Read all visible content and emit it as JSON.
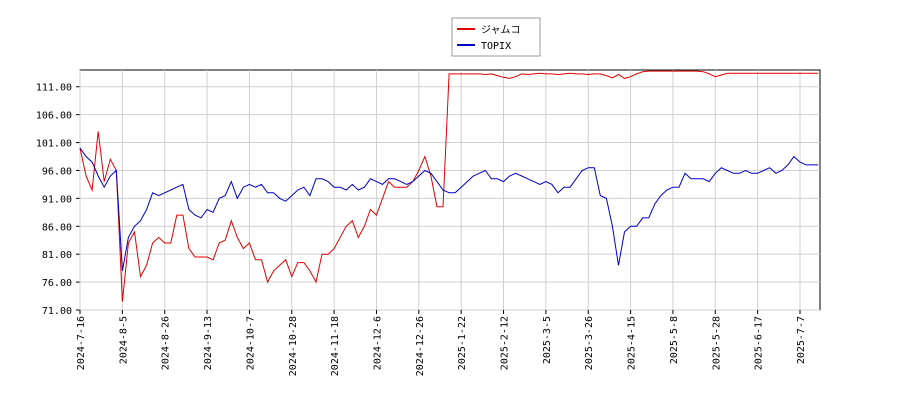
{
  "chart_data": {
    "type": "line",
    "categories": [
      "2024-7-16",
      null,
      null,
      null,
      null,
      null,
      null,
      "2024-8-5",
      null,
      null,
      null,
      null,
      null,
      null,
      "2024-8-26",
      null,
      null,
      null,
      null,
      null,
      null,
      "2024-9-13",
      null,
      null,
      null,
      null,
      null,
      null,
      "2024-10-7",
      null,
      null,
      null,
      null,
      null,
      null,
      "2024-10-28",
      null,
      null,
      null,
      null,
      null,
      null,
      "2024-11-18",
      null,
      null,
      null,
      null,
      null,
      null,
      "2024-12-6",
      null,
      null,
      null,
      null,
      null,
      null,
      "2024-12-26",
      null,
      null,
      null,
      null,
      null,
      null,
      "2025-1-22",
      null,
      null,
      null,
      null,
      null,
      null,
      "2025-2-12",
      null,
      null,
      null,
      null,
      null,
      null,
      "2025-3-5",
      null,
      null,
      null,
      null,
      null,
      null,
      "2025-3-26",
      null,
      null,
      null,
      null,
      null,
      null,
      "2025-4-15",
      null,
      null,
      null,
      null,
      null,
      null,
      "2025-5-8",
      null,
      null,
      null,
      null,
      null,
      null,
      "2025-5-28",
      null,
      null,
      null,
      null,
      null,
      null,
      "2025-6-17",
      null,
      null,
      null,
      null,
      null,
      null,
      "2025-7-7",
      null,
      null,
      null
    ],
    "series": [
      {
        "name": "ジャムコ",
        "color": "#e00000",
        "values": [
          100,
          95,
          92.5,
          103,
          94,
          98,
          96,
          72.5,
          83,
          85,
          77,
          79,
          83,
          84,
          83,
          83,
          88,
          88,
          82,
          80.5,
          80.5,
          80.5,
          80,
          83,
          83.5,
          87,
          84,
          82,
          83,
          80,
          80,
          76,
          78,
          79,
          80,
          77,
          79.5,
          79.5,
          78,
          76,
          81,
          81,
          82,
          84,
          86,
          87,
          84,
          86,
          89,
          88,
          91,
          94,
          93,
          93,
          93,
          94,
          96,
          98.5,
          95,
          89.5,
          89.5,
          113.3,
          113.3,
          113.3,
          113.3,
          113.3,
          113.3,
          113.2,
          113.3,
          113.0,
          112.7,
          112.5,
          112.8,
          113.3,
          113.2,
          113.3,
          113.4,
          113.3,
          113.3,
          113.2,
          113.3,
          113.4,
          113.3,
          113.3,
          113.2,
          113.3,
          113.3,
          113.0,
          112.6,
          113.2,
          112.5,
          112.8,
          113.3,
          113.7,
          113.8,
          113.8,
          113.8,
          113.8,
          113.8,
          113.8,
          113.8,
          113.8,
          113.8,
          113.7,
          113.3,
          112.8,
          113.1,
          113.4,
          113.4,
          113.4,
          113.4,
          113.4,
          113.4,
          113.4,
          113.4,
          113.4,
          113.4,
          113.4,
          113.4,
          113.4,
          113.4,
          113.4,
          113.4
        ]
      },
      {
        "name": "TOPIX",
        "color": "#0000c8",
        "values": [
          100,
          98.5,
          97.5,
          95,
          93,
          95,
          96,
          78,
          84,
          86,
          87,
          89,
          92,
          91.5,
          92,
          92.5,
          93,
          93.5,
          89,
          88,
          87.5,
          89,
          88.5,
          91,
          91.5,
          94,
          91,
          93,
          93.5,
          93,
          93.5,
          92,
          92,
          91,
          90.5,
          91.5,
          92.5,
          93,
          91.5,
          94.5,
          94.5,
          94,
          93,
          93,
          92.5,
          93.5,
          92.5,
          93,
          94.5,
          94,
          93.5,
          94.5,
          94.5,
          94,
          93.5,
          94,
          95,
          96,
          95.5,
          94,
          92.5,
          92,
          92,
          93,
          94,
          95,
          95.5,
          96,
          94.5,
          94.5,
          94,
          95,
          95.5,
          95,
          94.5,
          94,
          93.5,
          94,
          93.5,
          92,
          93,
          93,
          94.5,
          96,
          96.5,
          96.5,
          91.5,
          91,
          86,
          79,
          85,
          86,
          86,
          87.5,
          87.5,
          90,
          91.5,
          92.5,
          93,
          93,
          95.5,
          94.5,
          94.5,
          94.5,
          94,
          95.5,
          96.5,
          96,
          95.5,
          95.5,
          96,
          95.5,
          95.5,
          96,
          96.5,
          95.5,
          96,
          97,
          98.5,
          97.5,
          97,
          97,
          97
        ]
      }
    ],
    "ylim": [
      71,
      114
    ],
    "yticks": [
      {
        "value": 71,
        "label": "71.00"
      },
      {
        "value": 76,
        "label": "76.00"
      },
      {
        "value": 81,
        "label": "81.00"
      },
      {
        "value": 86,
        "label": "86.00"
      },
      {
        "value": 91,
        "label": "91.00"
      },
      {
        "value": 96,
        "label": "96.00"
      },
      {
        "value": 101,
        "label": "101.00"
      },
      {
        "value": 106,
        "label": "106.00"
      },
      {
        "value": 111,
        "label": "111.00"
      }
    ],
    "grid": true
  }
}
